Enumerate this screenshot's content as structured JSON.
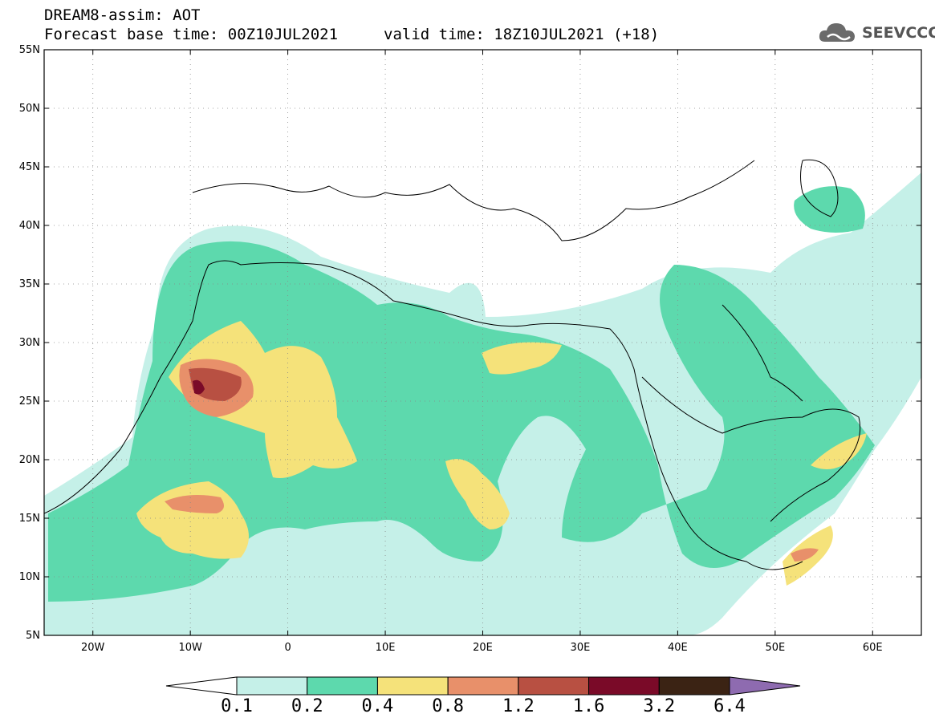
{
  "header": {
    "line1": "DREAM8-assim: AOT",
    "line2": "Forecast base time: 00Z10JUL2021",
    "valid": "valid time: 18Z10JUL2021 (+18)"
  },
  "logo": {
    "icon": "cloud-icon",
    "text": "SEEVCCC"
  },
  "axes": {
    "lat_labels": [
      "55N",
      "50N",
      "45N",
      "40N",
      "35N",
      "30N",
      "25N",
      "20N",
      "15N",
      "10N",
      "5N"
    ],
    "lat_values": [
      55,
      50,
      45,
      40,
      35,
      30,
      25,
      20,
      15,
      10,
      5
    ],
    "lon_labels": [
      "20W",
      "10W",
      "0",
      "10E",
      "20E",
      "30E",
      "40E",
      "50E",
      "60E"
    ],
    "lon_values": [
      -20,
      -10,
      0,
      10,
      20,
      30,
      40,
      50,
      60
    ],
    "lon_range": [
      -25,
      65
    ],
    "lat_range": [
      5,
      55
    ],
    "grid": "dotted"
  },
  "colorbar": {
    "labels": [
      "0.1",
      "0.2",
      "0.4",
      "0.8",
      "1.2",
      "1.6",
      "3.2",
      "6.4"
    ],
    "colors": [
      "#ffffff",
      "#c5f0e8",
      "#5dd9ad",
      "#f5e27a",
      "#e8906a",
      "#b85042",
      "#7a0a28",
      "#3b2314",
      "#8e6bb0"
    ]
  }
}
